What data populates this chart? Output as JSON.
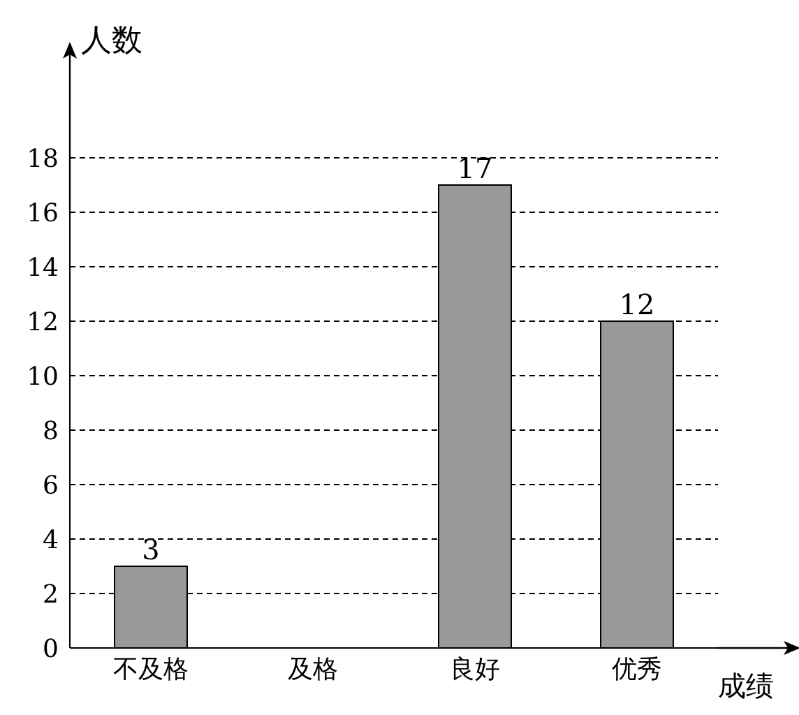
{
  "chart_data": {
    "type": "bar",
    "xlabel": "成绩",
    "ylabel": "人数",
    "categories": [
      "不及格",
      "及格",
      "良好",
      "优秀"
    ],
    "values": [
      3,
      null,
      17,
      12
    ],
    "color": "#999999",
    "ylim": [
      0,
      18
    ],
    "yticks": [
      0,
      2,
      4,
      6,
      8,
      10,
      12,
      14,
      16,
      18
    ],
    "grid": "y",
    "data_labels": true
  }
}
